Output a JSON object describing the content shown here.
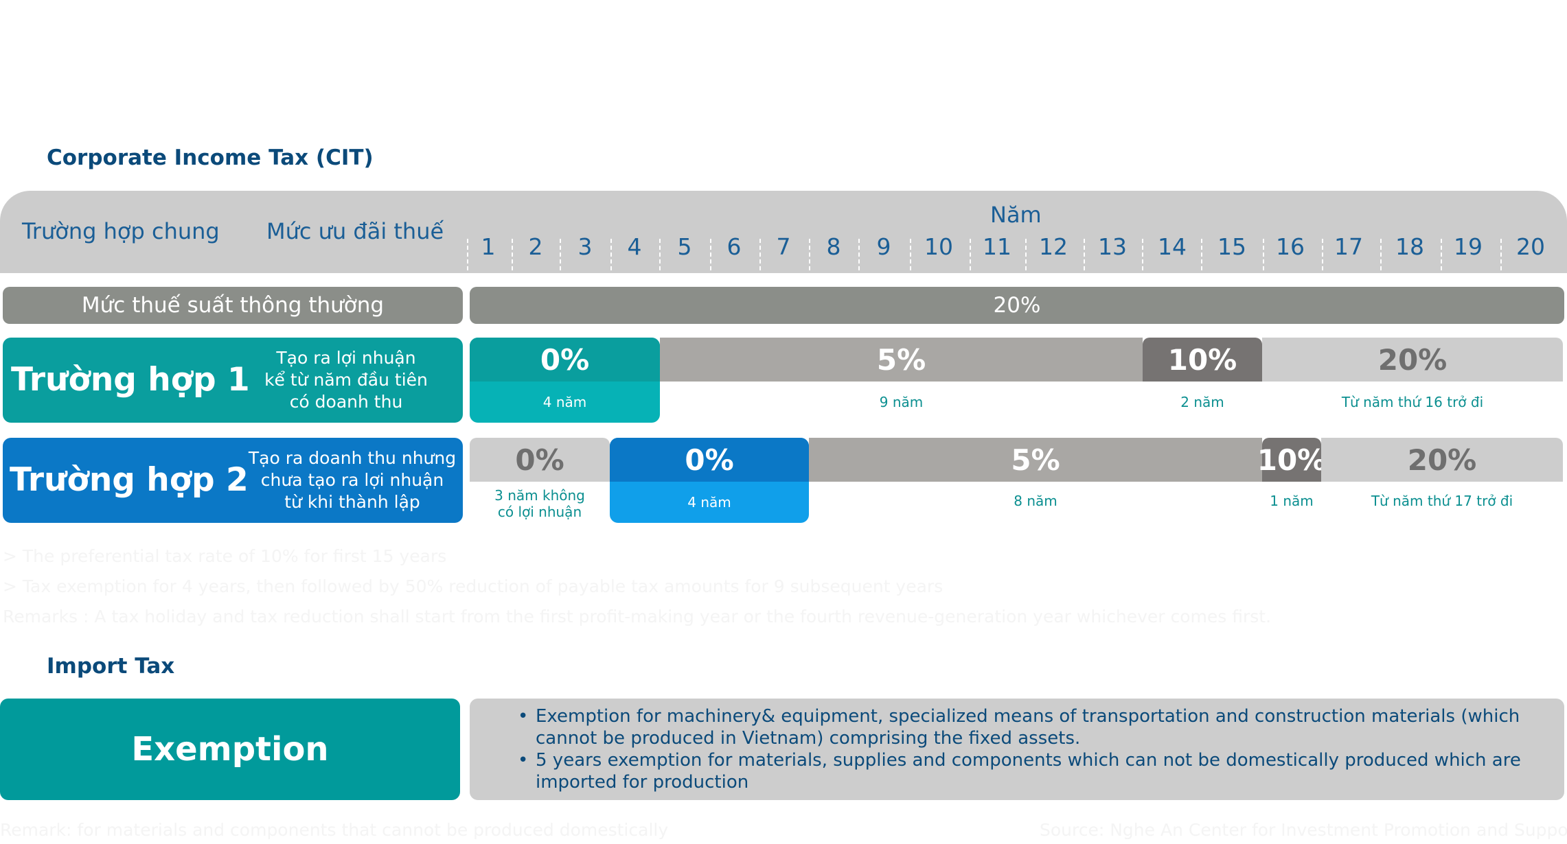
{
  "cit_title": "Corporate Income Tax (CIT)",
  "header": {
    "col1": "Trường hợp chung",
    "col2": "Mức ưu đãi thuế",
    "years_label": "Năm",
    "years": [
      "1",
      "2",
      "3",
      "4",
      "5",
      "6",
      "7",
      "8",
      "9",
      "10",
      "11",
      "12",
      "13",
      "14",
      "15",
      "16",
      "17",
      "18",
      "19",
      "20"
    ]
  },
  "standard": {
    "label": "Mức thuế suất thông thường",
    "value": "20%"
  },
  "case1": {
    "title": "Trường hợp 1",
    "desc": [
      "Tạo ra lợi nhuận",
      "kể từ năm đầu tiên",
      "có doanh thu"
    ],
    "segments": [
      {
        "rate": "0%",
        "note": "4 năm",
        "start_year": 1,
        "end_year": 4
      },
      {
        "rate": "5%",
        "note": "9 năm",
        "start_year": 5,
        "end_year": 13
      },
      {
        "rate": "10%",
        "note": "2 năm",
        "start_year": 14,
        "end_year": 15
      },
      {
        "rate": "20%",
        "note": "Từ năm thứ 16 trở đi",
        "start_year": 16,
        "end_year": 20
      }
    ]
  },
  "case2": {
    "title": "Trường hợp 2",
    "desc": [
      "Tạo ra doanh thu nhưng",
      "chưa tạo ra lợi nhuận",
      "từ khi thành lập"
    ],
    "segments": [
      {
        "rate": "0%",
        "note": [
          "3 năm không",
          "có lợi nhuận"
        ],
        "start_year": 1,
        "end_year": 3
      },
      {
        "rate": "0%",
        "note": "4 năm",
        "start_year": 4,
        "end_year": 7
      },
      {
        "rate": "5%",
        "note": "8 năm",
        "start_year": 8,
        "end_year": 15
      },
      {
        "rate": "10%",
        "note": "1 năm",
        "start_year": 16,
        "end_year": 16
      },
      {
        "rate": "20%",
        "note": "Từ năm thứ 17 trở đi",
        "start_year": 17,
        "end_year": 20
      }
    ]
  },
  "faint_lines": [
    "> The preferential tax rate of 10% for first 15 years",
    "> Tax exemption for 4 years, then followed by 50% reduction of payable tax amounts for 9 subsequent years",
    "Remarks : A tax holiday and tax reduction shall start from the first profit-making year or the fourth revenue-generation year whichever comes first."
  ],
  "import_title": "Import Tax",
  "exemption": {
    "label": "Exemption",
    "items": [
      "Exemption for machinery& equipment, specialized means of transportation and construction materials (which cannot be produced in Vietnam) comprising the fixed assets.",
      "5 years exemption for materials, supplies and components which can not be domestically produced which are imported for production"
    ]
  },
  "footer": {
    "remark": "Remark: for materials and components that cannot be produced domestically",
    "source": "Source: Nghe An Center for Investment Promotion and Support"
  },
  "colors": {
    "navy": "#0b4a7a",
    "teal": "#0a9e9e",
    "teal_light": "#06b2b6",
    "blue": "#0b78c6",
    "blue_light": "#109fea",
    "gray_header": "#cccccc",
    "gray_std": "#8b8e89",
    "gray_5": "#a9a7a4",
    "gray_10": "#767372",
    "gray_20": "#cdcdcd"
  }
}
